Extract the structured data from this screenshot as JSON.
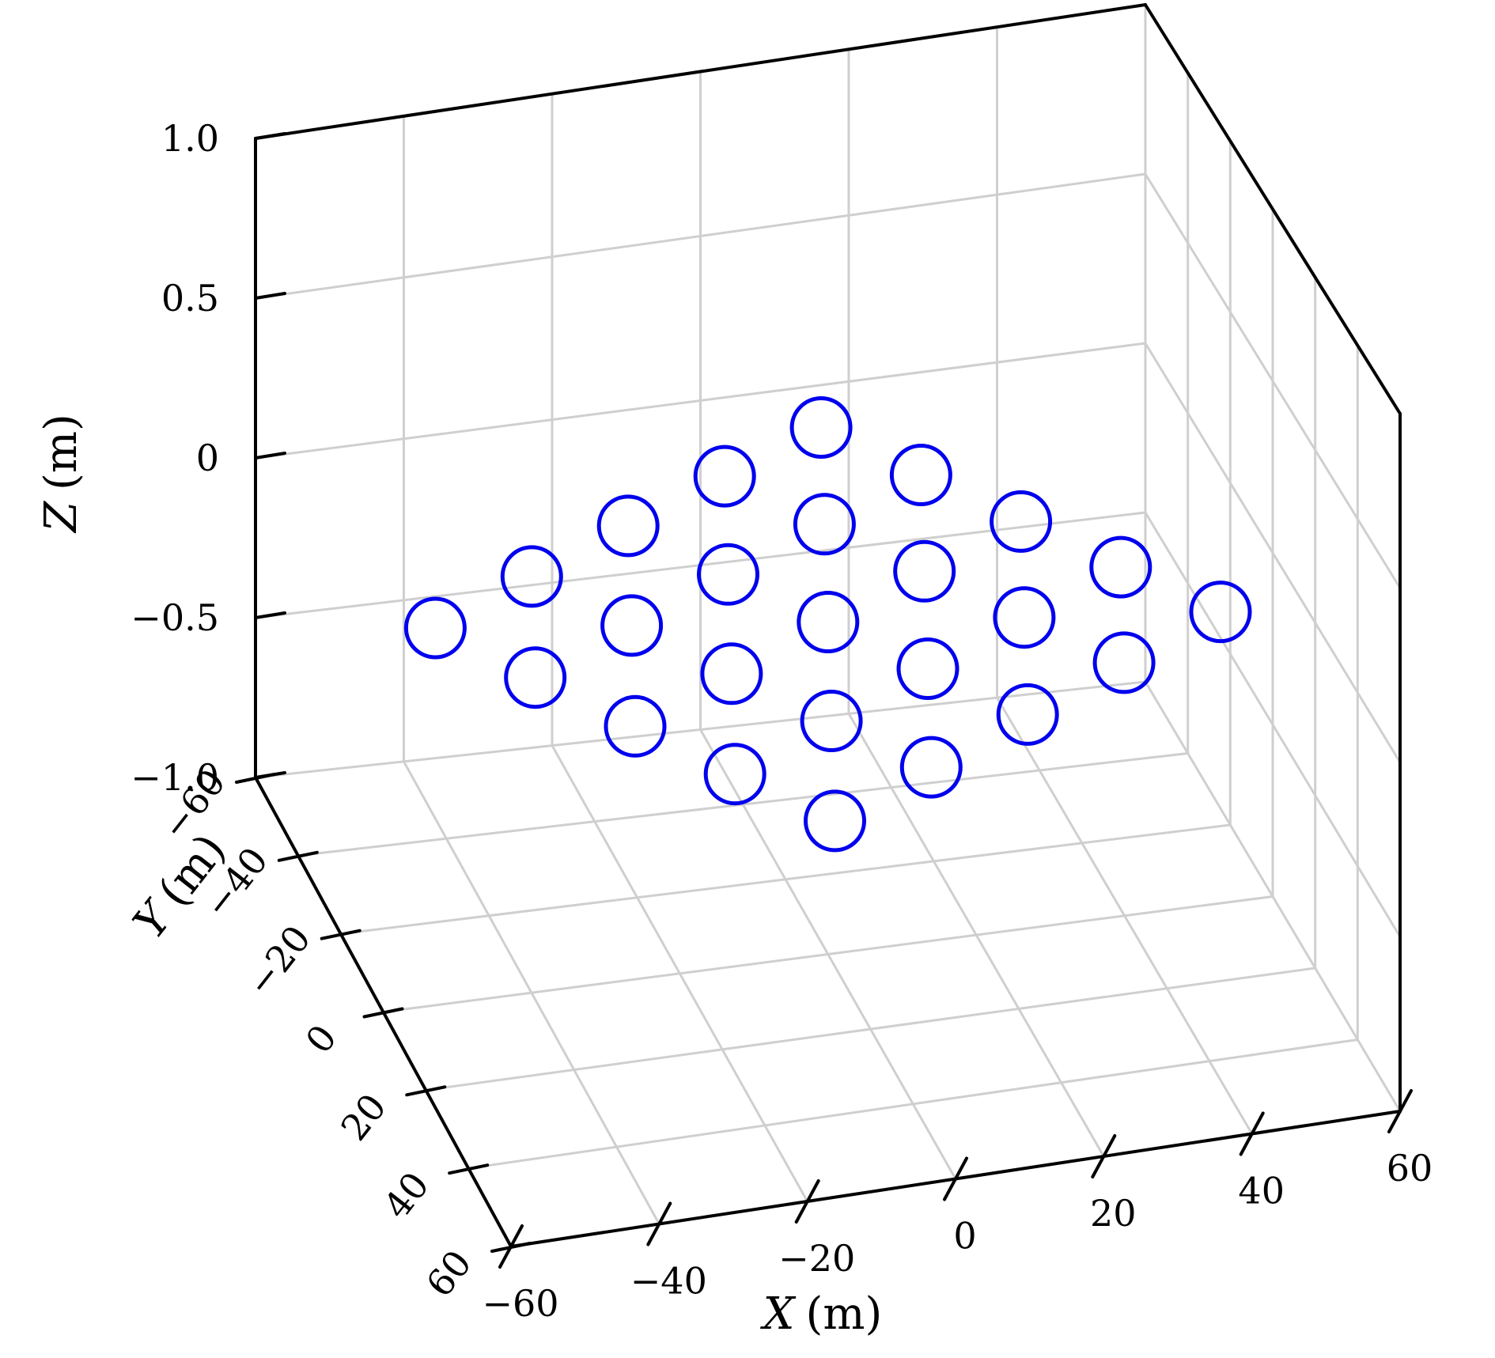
{
  "chart_data": {
    "type": "scatter3d",
    "title": "",
    "axes": {
      "x": {
        "label": "X (m)",
        "label_letter": "X",
        "label_unit": "(m)",
        "range": [
          -60,
          60
        ],
        "ticks": [
          -60,
          -40,
          -20,
          0,
          20,
          40,
          60
        ],
        "tick_labels": [
          "−60",
          "−40",
          "−20",
          "0",
          "20",
          "40",
          "60"
        ]
      },
      "y": {
        "label": "Y (m)",
        "label_letter": "Y",
        "label_unit": "(m)",
        "range": [
          -60,
          60
        ],
        "ticks": [
          -60,
          -40,
          -20,
          0,
          20,
          40,
          60
        ],
        "tick_labels": [
          "60",
          "40",
          "20",
          "0",
          "−20",
          "−40",
          "−60"
        ]
      },
      "z": {
        "label": "Z (m)",
        "label_letter": "Z",
        "label_unit": "(m)",
        "range": [
          -1,
          1
        ],
        "ticks": [
          1.0,
          0.5,
          0,
          -0.5,
          -1.0
        ],
        "tick_labels": [
          "1.0",
          "0.5",
          "0",
          "−0.5",
          "−1.0"
        ]
      }
    },
    "grid": {
      "visible": true,
      "color": "#cfcfcf"
    },
    "box_color": "#000000",
    "background": "#ffffff",
    "marker": {
      "shape": "open-circle",
      "color": "#0000ee",
      "radius_px": 37,
      "stroke_px": 5
    },
    "points": [
      [
        13.18,
        49.18,
        0
      ],
      [
        -2.41,
        40.18,
        0
      ],
      [
        -18.0,
        31.18,
        0
      ],
      [
        -33.59,
        22.18,
        0
      ],
      [
        -49.18,
        13.18,
        0
      ],
      [
        22.18,
        33.59,
        0
      ],
      [
        6.59,
        24.59,
        0
      ],
      [
        -9.0,
        15.59,
        0
      ],
      [
        -24.59,
        6.59,
        0
      ],
      [
        -40.18,
        -2.41,
        0
      ],
      [
        31.18,
        18.0,
        0
      ],
      [
        15.59,
        9.0,
        0
      ],
      [
        0.0,
        0.0,
        0
      ],
      [
        -15.59,
        -9.0,
        0
      ],
      [
        -31.18,
        -18.0,
        0
      ],
      [
        40.18,
        2.41,
        0
      ],
      [
        24.59,
        -6.59,
        0
      ],
      [
        9.0,
        -15.59,
        0
      ],
      [
        -6.59,
        -24.59,
        0
      ],
      [
        -22.18,
        -33.59,
        0
      ],
      [
        49.18,
        -13.18,
        0
      ],
      [
        33.59,
        -22.18,
        0
      ],
      [
        18.0,
        -31.18,
        0
      ],
      [
        2.41,
        -40.18,
        0
      ],
      [
        -13.18,
        -49.18,
        0
      ]
    ]
  }
}
